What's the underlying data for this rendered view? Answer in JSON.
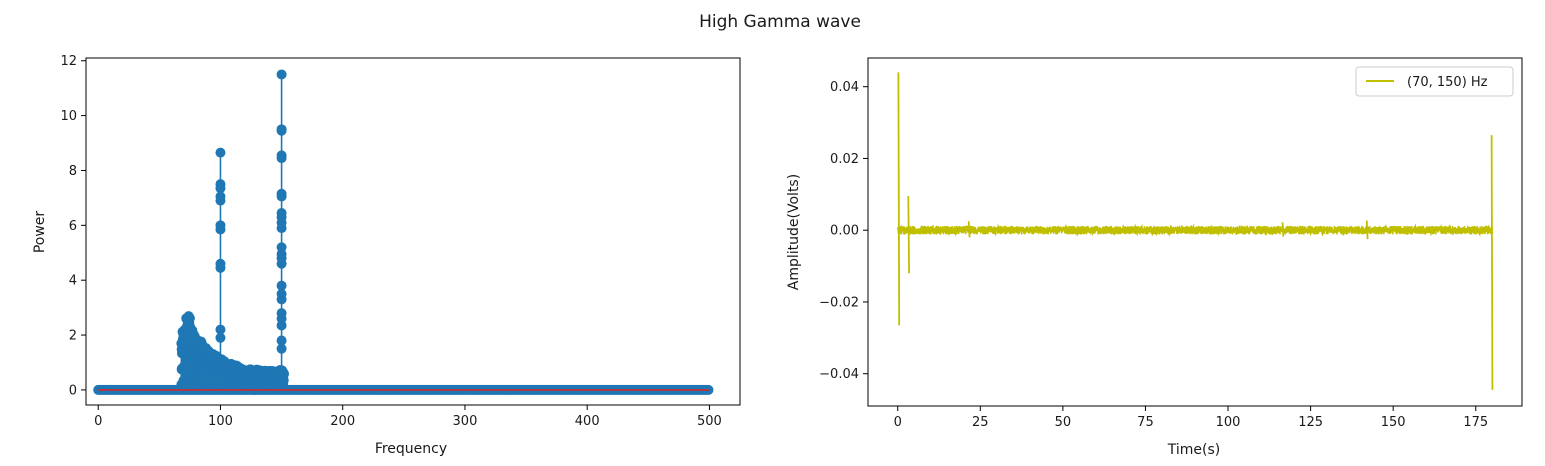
{
  "figure": {
    "title": "High Gamma wave"
  },
  "chart_data": [
    {
      "type": "scatter",
      "subtype": "stem",
      "title": "",
      "xlabel": "Frequency",
      "ylabel": "Power",
      "xlim": [
        -10,
        525
      ],
      "ylim": [
        -0.55,
        12.1
      ],
      "xticks": [
        0,
        100,
        200,
        300,
        400,
        500
      ],
      "yticks": [
        0,
        2,
        4,
        6,
        8,
        10,
        12
      ],
      "grid": false,
      "colors": {
        "stem": "#1f77b4",
        "baseline": "#d62728"
      },
      "baseline": 0,
      "baseline_range": [
        0,
        500
      ],
      "band": {
        "range": [
          68,
          152
        ],
        "profile": [
          [
            68,
            2.2
          ],
          [
            70,
            2.5
          ],
          [
            72,
            2.7
          ],
          [
            74,
            2.9
          ],
          [
            76,
            2.4
          ],
          [
            78,
            2.2
          ],
          [
            80,
            2.0
          ],
          [
            84,
            1.8
          ],
          [
            88,
            1.6
          ],
          [
            92,
            1.4
          ],
          [
            96,
            1.3
          ],
          [
            100,
            1.2
          ],
          [
            105,
            1.0
          ],
          [
            110,
            0.95
          ],
          [
            115,
            0.85
          ],
          [
            120,
            0.8
          ],
          [
            125,
            0.75
          ],
          [
            130,
            0.75
          ],
          [
            135,
            0.72
          ],
          [
            140,
            0.7
          ],
          [
            145,
            0.7
          ],
          [
            150,
            0.75
          ],
          [
            152,
            0.6
          ]
        ]
      },
      "peaks": [
        {
          "x": 100,
          "values": [
            8.65,
            7.5,
            7.35,
            7.05,
            6.9,
            6.0,
            5.85,
            4.6,
            4.45,
            2.2,
            1.9
          ]
        },
        {
          "x": 150,
          "values": [
            11.5,
            9.5,
            9.45,
            8.55,
            8.45,
            7.15,
            7.05,
            6.45,
            6.3,
            6.1,
            5.9,
            5.2,
            4.95,
            4.8,
            4.6,
            3.8,
            3.5,
            3.3,
            2.8,
            2.6,
            2.35,
            1.8,
            1.5
          ]
        }
      ]
    },
    {
      "type": "line",
      "title": "",
      "xlabel": "Time(s)",
      "ylabel": "Amplitude(Volts)",
      "xlim": [
        -9,
        189
      ],
      "ylim": [
        -0.049,
        0.048
      ],
      "xticks": [
        0,
        25,
        50,
        75,
        100,
        125,
        150,
        175
      ],
      "yticks": [
        -0.04,
        -0.02,
        0.0,
        0.02,
        0.04
      ],
      "ytick_labels": [
        "−0.04",
        "−0.02",
        "0.00",
        "0.02",
        "0.04"
      ],
      "grid": false,
      "legend": {
        "position": "upper-right"
      },
      "series": [
        {
          "name": "(70, 150) Hz",
          "color": "#bfbf00",
          "x_range": [
            0,
            180
          ],
          "noise_amplitude": 0.0012,
          "spikes": [
            {
              "x": 0.2,
              "values": [
                0.044,
                -0.0265
              ]
            },
            {
              "x": 3.2,
              "values": [
                0.0095,
                -0.012
              ]
            },
            {
              "x": 21.5,
              "values": [
                0.0025,
                -0.002
              ]
            },
            {
              "x": 116.5,
              "values": [
                0.0022,
                -0.0018
              ]
            },
            {
              "x": 142.0,
              "values": [
                0.0027,
                -0.0025
              ]
            },
            {
              "x": 179.8,
              "values": [
                0.0265,
                -0.0445
              ]
            }
          ]
        }
      ]
    }
  ]
}
